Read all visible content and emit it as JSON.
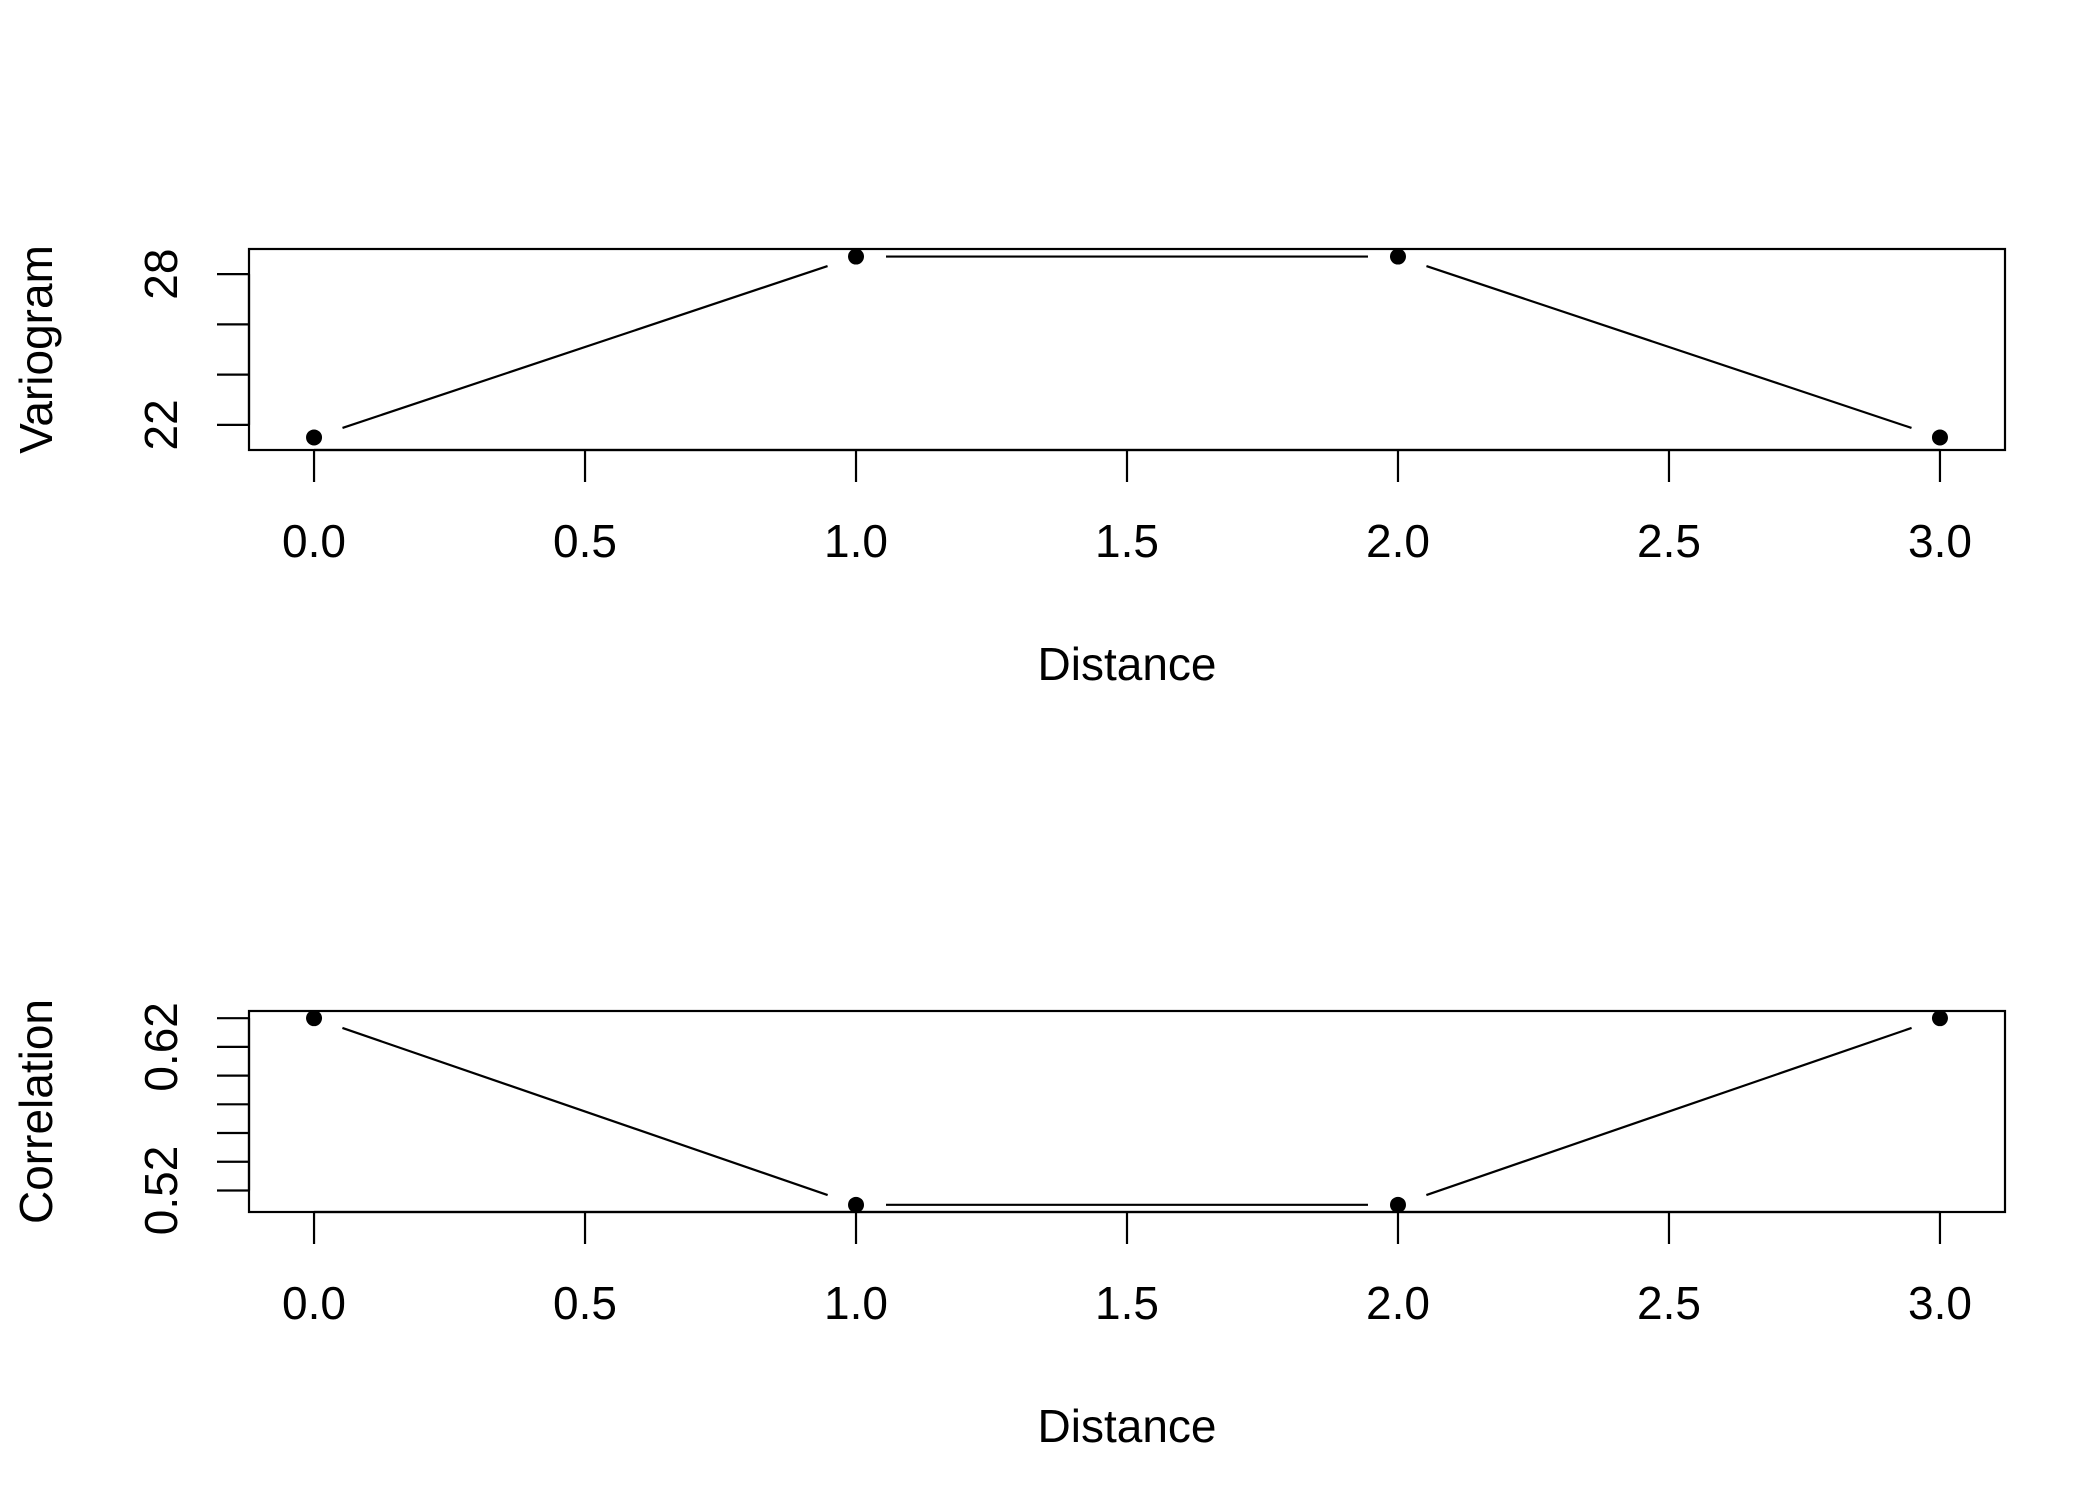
{
  "chart_data": [
    {
      "type": "line",
      "markers": true,
      "x": [
        0,
        1,
        2,
        3
      ],
      "y": [
        21.5,
        28.7,
        28.7,
        21.5
      ],
      "xlabel": "Distance",
      "ylabel": "Variogram",
      "xlim": [
        -0.12,
        3.12
      ],
      "ylim": [
        21.0,
        29.0
      ],
      "x_ticks": [
        0.0,
        0.5,
        1.0,
        1.5,
        2.0,
        2.5,
        3.0
      ],
      "x_tick_labels": [
        "0.0",
        "0.5",
        "1.0",
        "1.5",
        "2.0",
        "2.5",
        "3.0"
      ],
      "y_ticks": [
        22,
        24,
        26,
        28
      ],
      "y_tick_labels": [
        "22",
        "",
        "",
        "28"
      ],
      "grid": false
    },
    {
      "type": "line",
      "markers": true,
      "x": [
        0,
        1,
        2,
        3
      ],
      "y": [
        0.64,
        0.51,
        0.51,
        0.64
      ],
      "xlabel": "Distance",
      "ylabel": "Correlation",
      "xlim": [
        -0.12,
        3.12
      ],
      "ylim": [
        0.505,
        0.645
      ],
      "x_ticks": [
        0.0,
        0.5,
        1.0,
        1.5,
        2.0,
        2.5,
        3.0
      ],
      "x_tick_labels": [
        "0.0",
        "0.5",
        "1.0",
        "1.5",
        "2.0",
        "2.5",
        "3.0"
      ],
      "y_ticks": [
        0.52,
        0.54,
        0.56,
        0.58,
        0.6,
        0.62,
        0.64
      ],
      "y_tick_labels": [
        "0.52",
        "",
        "",
        "",
        "",
        "0.62",
        ""
      ],
      "grid": false
    }
  ]
}
